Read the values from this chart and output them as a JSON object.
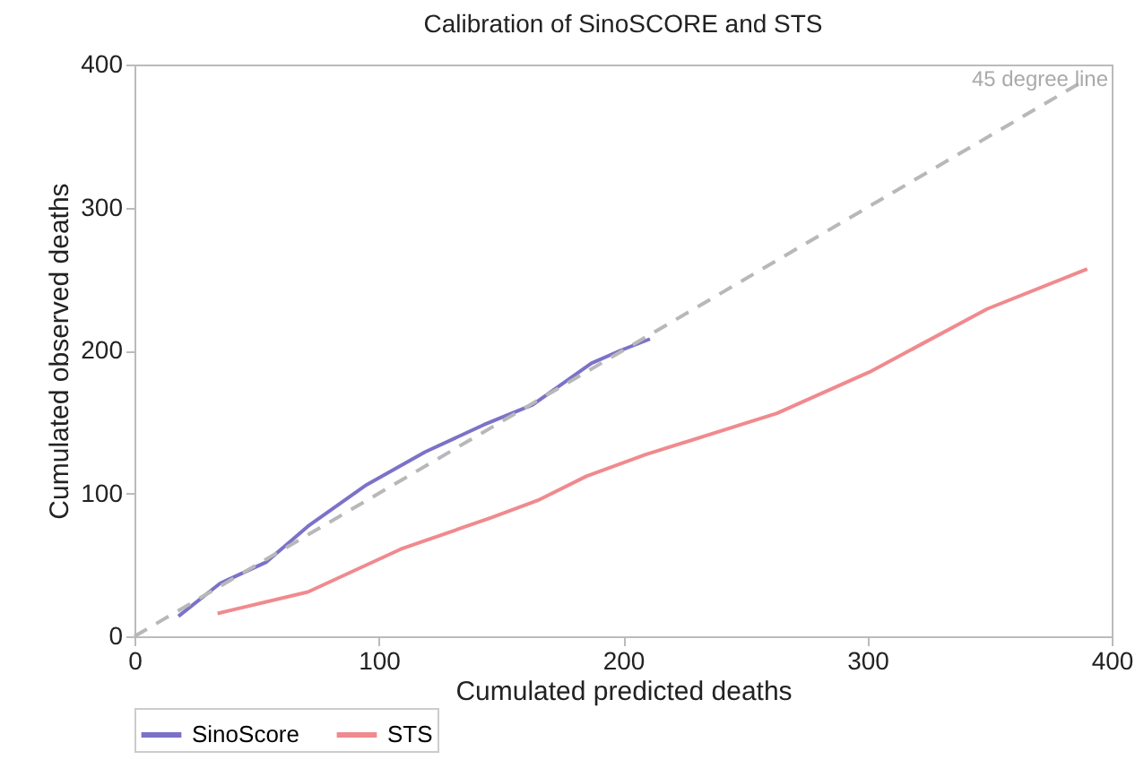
{
  "chart_data": {
    "type": "line",
    "title": "Calibration of SinoSCORE and STS",
    "xlabel": "Cumulated predicted deaths",
    "ylabel": "Cumulated observed deaths",
    "annotations": [
      "45 degree line"
    ],
    "xlim": [
      0,
      400
    ],
    "ylim": [
      0,
      400
    ],
    "xticks": [
      0,
      100,
      200,
      300,
      400
    ],
    "yticks": [
      0,
      100,
      200,
      300,
      400
    ],
    "grid": false,
    "legend": "bottom",
    "marker": "none",
    "series": [
      {
        "name": "SinoScore",
        "color": "#7b72c8",
        "x": [
          18,
          35,
          54,
          71,
          95,
          119,
          143,
          163,
          187,
          199,
          211
        ],
        "values": [
          14,
          37,
          52,
          77,
          106,
          129,
          148,
          162,
          191,
          200,
          208
        ]
      },
      {
        "name": "STS",
        "color": "#f08a8e",
        "x": [
          34,
          71,
          109,
          146,
          165,
          185,
          209,
          263,
          301,
          349,
          390
        ],
        "values": [
          16,
          31,
          61,
          83,
          95,
          112,
          127,
          156,
          185,
          229,
          257
        ]
      },
      {
        "color": "#b8b8b8",
        "line_style": "dashed",
        "x": [
          0,
          390
        ],
        "values": [
          0,
          390
        ]
      }
    ]
  }
}
